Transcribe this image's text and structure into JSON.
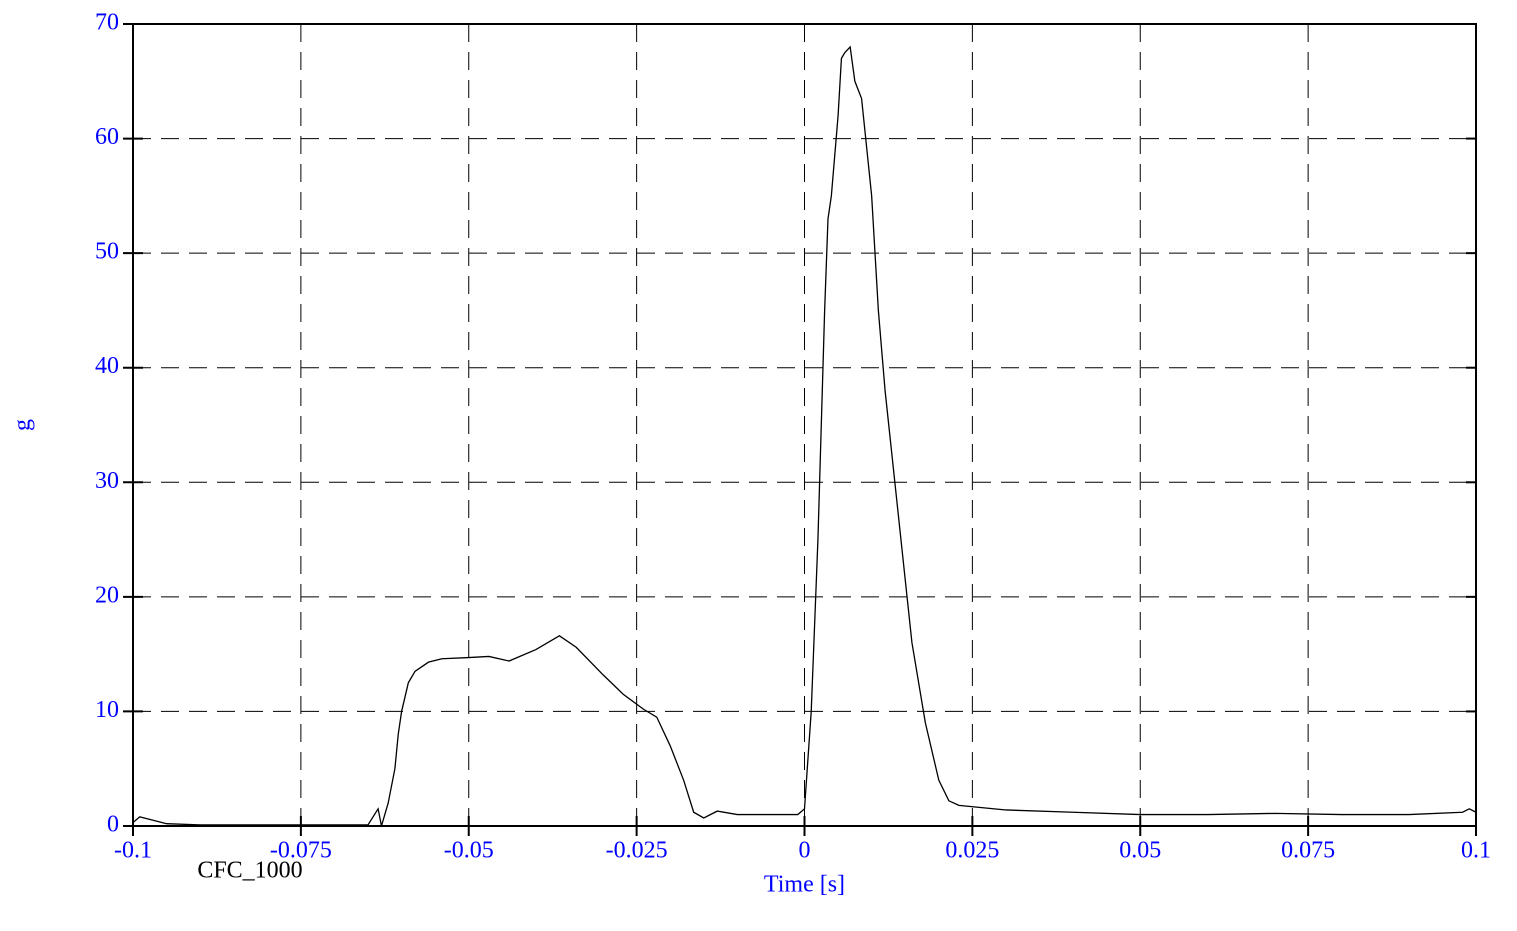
{
  "chart_data": {
    "type": "line",
    "x_label": "Time [s]",
    "y_label": "g",
    "annotation": "CFC_1000",
    "x": [
      -0.1,
      -0.099,
      -0.097,
      -0.095,
      -0.09,
      -0.08,
      -0.07,
      -0.065,
      -0.0635,
      -0.063,
      -0.062,
      -0.061,
      -0.0605,
      -0.06,
      -0.059,
      -0.058,
      -0.056,
      -0.054,
      -0.05,
      -0.047,
      -0.044,
      -0.04,
      -0.0365,
      -0.034,
      -0.03,
      -0.027,
      -0.024,
      -0.022,
      -0.02,
      -0.018,
      -0.0165,
      -0.015,
      -0.013,
      -0.01,
      -0.005,
      -0.001,
      0,
      0.001,
      0.002,
      0.003,
      0.0035,
      0.004,
      0.005,
      0.0055,
      0.006,
      0.0068,
      0.0075,
      0.0085,
      0.01,
      0.011,
      0.012,
      0.014,
      0.016,
      0.018,
      0.02,
      0.0215,
      0.023,
      0.03,
      0.04,
      0.05,
      0.06,
      0.07,
      0.08,
      0.09,
      0.098,
      0.099,
      0.1
    ],
    "values": [
      0.3,
      0.8,
      0.5,
      0.2,
      0.1,
      0.1,
      0.1,
      0.1,
      1.5,
      0,
      2,
      5,
      8,
      10,
      12.5,
      13.5,
      14.3,
      14.6,
      14.7,
      14.8,
      14.4,
      15.4,
      16.6,
      15.6,
      13.2,
      11.5,
      10.2,
      9.5,
      7,
      4,
      1.2,
      0.7,
      1.3,
      1.0,
      1.0,
      1.0,
      1.5,
      10,
      25,
      45,
      53,
      55,
      62,
      67,
      67.5,
      68,
      65,
      63.5,
      55,
      45,
      38,
      27,
      16,
      9,
      4,
      2.2,
      1.8,
      1.4,
      1.2,
      1.0,
      1.0,
      1.1,
      1.0,
      1.0,
      1.2,
      1.5,
      1.2
    ],
    "color": "#000000",
    "label_color": "#0000ff",
    "xlim": [
      -0.1,
      0.1
    ],
    "xticks": [
      -0.1,
      -0.075,
      -0.05,
      -0.025,
      0,
      0.025,
      0.05,
      0.075,
      0.1
    ],
    "ylim": [
      0,
      70
    ],
    "yticks": [
      0,
      10,
      20,
      30,
      40,
      50,
      60,
      70
    ],
    "grid": true
  }
}
